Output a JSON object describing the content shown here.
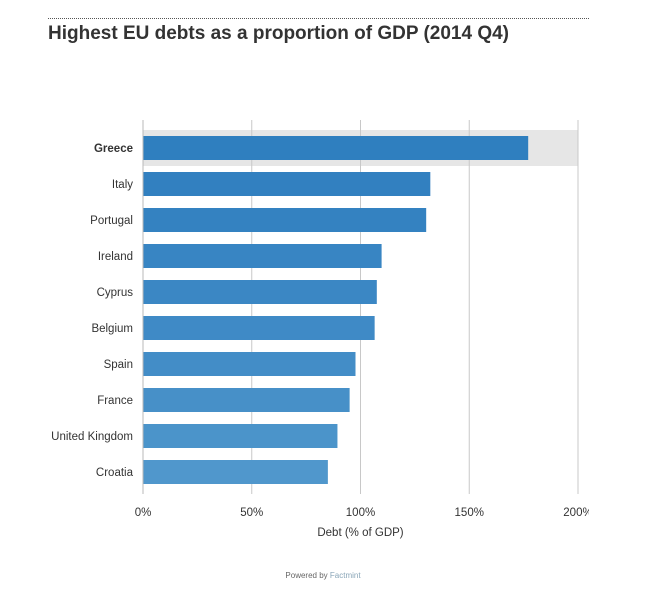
{
  "header": {
    "title": "Highest EU debts as a proportion of GDP (2014 Q4)"
  },
  "chart_data": {
    "type": "bar",
    "orientation": "horizontal",
    "title": "Highest EU debts as a proportion of GDP (2014 Q4)",
    "xlabel": "Debt (% of GDP)",
    "ylabel": "",
    "xlim": [
      0,
      200
    ],
    "x_ticks": [
      0,
      50,
      100,
      150,
      200
    ],
    "x_tick_labels": [
      "0%",
      "50%",
      "100%",
      "150%",
      "200%"
    ],
    "grid": true,
    "highlighted_category": "Greece",
    "categories": [
      "Greece",
      "Italy",
      "Portugal",
      "Ireland",
      "Cyprus",
      "Belgium",
      "Spain",
      "France",
      "United Kingdom",
      "Croatia"
    ],
    "values": [
      177.1,
      132.1,
      130.2,
      109.7,
      107.5,
      106.5,
      97.7,
      95.0,
      89.4,
      85.0
    ],
    "bar_colors": [
      "#2f7fbf",
      "#3280c0",
      "#3482c1",
      "#3885c3",
      "#3b87c4",
      "#3f8ac6",
      "#438dc7",
      "#4790c8",
      "#4b94ca",
      "#5097cc"
    ],
    "highlight_band_color": "#e6e6e6"
  },
  "footer": {
    "powered_prefix": "Powered by",
    "powered_brand": "Factmint"
  }
}
